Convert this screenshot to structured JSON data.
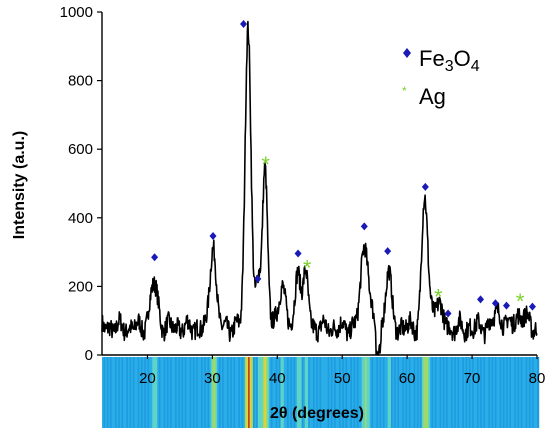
{
  "chart_data": {
    "type": "line",
    "xlabel": "2θ (degrees)",
    "ylabel": "Intensity (a.u.)",
    "xlim": [
      13,
      80
    ],
    "ylim": [
      0,
      1000
    ],
    "x_ticks": [
      20,
      30,
      40,
      50,
      60,
      70,
      80
    ],
    "y_ticks": [
      0,
      200,
      400,
      600,
      800,
      1000
    ],
    "legend": {
      "placement": "top-right",
      "entries": [
        {
          "symbol": "diamond",
          "color": "#1a1ab8",
          "label_main": "Fe",
          "label_sub1": "3",
          "label_mid": "O",
          "label_sub2": "4"
        },
        {
          "symbol": "asterisk",
          "color": "#7ad12e",
          "label": "Ag"
        }
      ]
    },
    "baseline": 80,
    "peaks": [
      {
        "x": 21.0,
        "y": 205,
        "w": 0.6
      },
      {
        "x": 30.1,
        "y": 330,
        "w": 0.45
      },
      {
        "x": 35.5,
        "y": 960,
        "w": 0.45
      },
      {
        "x": 37.1,
        "y": 215,
        "w": 0.35
      },
      {
        "x": 38.1,
        "y": 545,
        "w": 0.4
      },
      {
        "x": 40.7,
        "y": 210,
        "w": 0.5
      },
      {
        "x": 43.2,
        "y": 260,
        "w": 0.4
      },
      {
        "x": 44.4,
        "y": 230,
        "w": 0.4
      },
      {
        "x": 53.5,
        "y": 325,
        "w": 0.6
      },
      {
        "x": 57.1,
        "y": 245,
        "w": 0.45
      },
      {
        "x": 62.7,
        "y": 455,
        "w": 0.45
      },
      {
        "x": 64.5,
        "y": 150,
        "w": 0.8
      },
      {
        "x": 74.0,
        "y": 120,
        "w": 0.8
      },
      {
        "x": 77.5,
        "y": 120,
        "w": 0.8
      }
    ],
    "fe3o4_markers": [
      {
        "x": 21.1,
        "y": 285
      },
      {
        "x": 30.1,
        "y": 347
      },
      {
        "x": 34.8,
        "y": 965
      },
      {
        "x": 37.0,
        "y": 222
      },
      {
        "x": 43.2,
        "y": 296
      },
      {
        "x": 53.4,
        "y": 375
      },
      {
        "x": 57.0,
        "y": 303
      },
      {
        "x": 62.8,
        "y": 490
      },
      {
        "x": 66.3,
        "y": 121
      },
      {
        "x": 71.3,
        "y": 162
      },
      {
        "x": 73.6,
        "y": 151
      },
      {
        "x": 75.3,
        "y": 144
      },
      {
        "x": 79.3,
        "y": 141
      }
    ],
    "ag_markers": [
      {
        "x": 38.2,
        "y": 560
      },
      {
        "x": 44.6,
        "y": 258
      },
      {
        "x": 64.8,
        "y": 173
      },
      {
        "x": 77.4,
        "y": 160
      }
    ],
    "colors": {
      "line": "#000000",
      "fe3o4": "#1a1ab8",
      "ag": "#7ad12e",
      "strip_base": "#1f9be0",
      "strip_hot": "#c0391b"
    }
  }
}
